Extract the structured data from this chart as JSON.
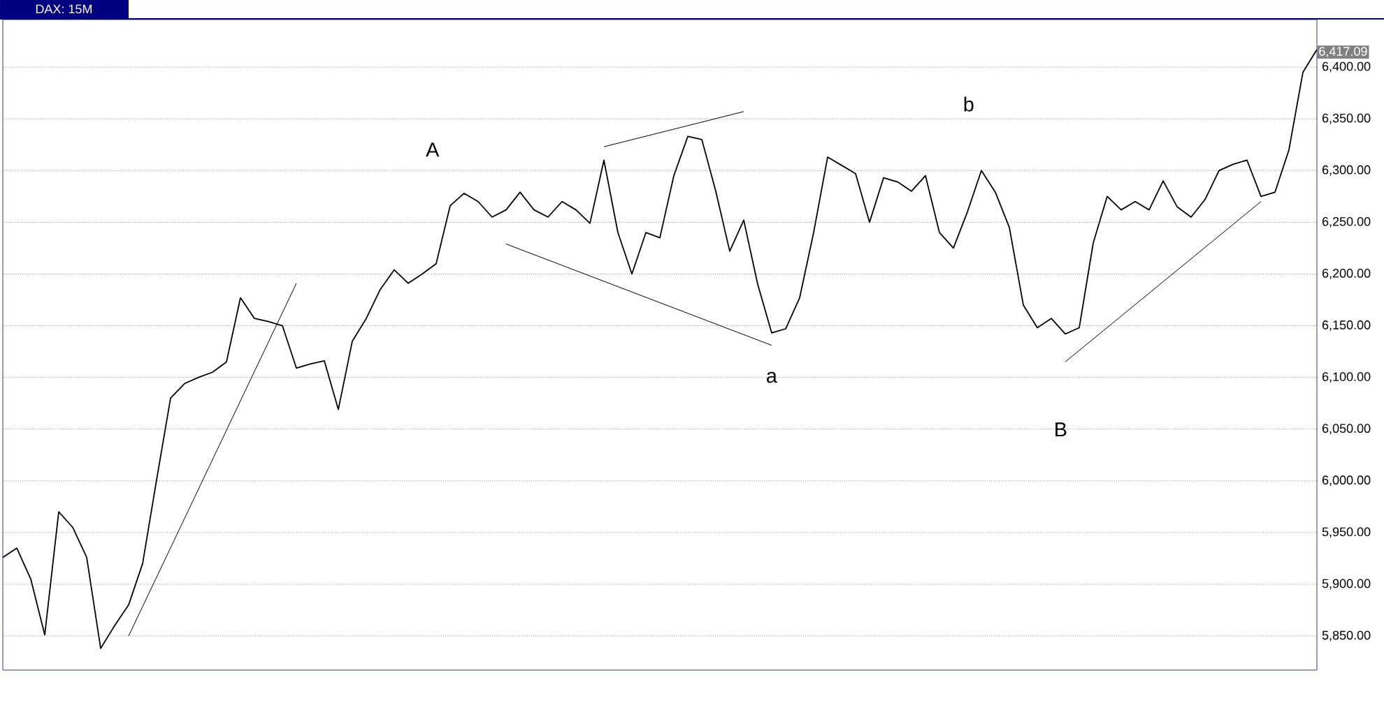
{
  "chart_data": {
    "type": "line",
    "title": "DAX: 15M",
    "categories": [
      null,
      null,
      null,
      null,
      null,
      null,
      null,
      null,
      null,
      null,
      null,
      null,
      null,
      null,
      null,
      null,
      null,
      null,
      null,
      null,
      null,
      null,
      null,
      null,
      null,
      null,
      null,
      null,
      null,
      null,
      null,
      null,
      null,
      null,
      null,
      null,
      null,
      null,
      null,
      null,
      null,
      null,
      null,
      null,
      null,
      null,
      null,
      null,
      null,
      null,
      null,
      null,
      null,
      null,
      null,
      null,
      null,
      null,
      null,
      null,
      null,
      null,
      null,
      null,
      null,
      null,
      null,
      null,
      null,
      null,
      null,
      null,
      null,
      null,
      null,
      null,
      null,
      null,
      null,
      null,
      null,
      null,
      null,
      null,
      null,
      null,
      null,
      null,
      null,
      null,
      null,
      null,
      null,
      null,
      null
    ],
    "ylim": [
      5817,
      6446
    ],
    "tick_labels": "y",
    "grid": "y",
    "yticks": [
      {
        "value": 5850,
        "label": "5,850.00"
      },
      {
        "value": 5900,
        "label": "5,900.00"
      },
      {
        "value": 5950,
        "label": "5,950.00"
      },
      {
        "value": 6000,
        "label": "6,000.00"
      },
      {
        "value": 6050,
        "label": "6,050.00"
      },
      {
        "value": 6100,
        "label": "6,100.00"
      },
      {
        "value": 6150,
        "label": "6,150.00"
      },
      {
        "value": 6200,
        "label": "6,200.00"
      },
      {
        "value": 6250,
        "label": "6,250.00"
      },
      {
        "value": 6300,
        "label": "6,300.00"
      },
      {
        "value": 6350,
        "label": "6,350.00"
      },
      {
        "value": 6400,
        "label": "6,400.00"
      }
    ],
    "series": [
      {
        "color": "#000000",
        "values": [
          5926,
          5935,
          5905,
          5851,
          5970,
          5955,
          5926,
          5838,
          5860,
          5880,
          5920,
          6001,
          6080,
          6094,
          6100,
          6105,
          6115,
          6177,
          6157,
          6154,
          6150,
          6109,
          6113,
          6116,
          6069,
          6135,
          6157,
          6185,
          6204,
          6191,
          6200,
          6210,
          6266,
          6278,
          6270,
          6255,
          6262,
          6279,
          6262,
          6255,
          6270,
          6262,
          6249,
          6310,
          6240,
          6200,
          6240,
          6235,
          6295,
          6333,
          6330,
          6280,
          6222,
          6252,
          6190,
          6143,
          6147,
          6177,
          6240,
          6313,
          6305,
          6297,
          6250,
          6293,
          6289,
          6280,
          6295,
          6240,
          6225,
          6260,
          6300,
          6279,
          6245,
          6170,
          6148,
          6157,
          6142,
          6148,
          6230,
          6275,
          6262,
          6270,
          6262,
          6290,
          6265,
          6255,
          6272,
          6300,
          6306,
          6310,
          6275,
          6279,
          6320,
          6395,
          6417
        ]
      },
      {
        "color": "#000000",
        "values": [
          null,
          null,
          null,
          null,
          null,
          null,
          null,
          null,
          null,
          5850,
          null,
          null,
          null,
          null,
          null,
          null,
          null,
          null,
          null,
          null,
          null,
          6191,
          null,
          null,
          null,
          null,
          null,
          null,
          null,
          null,
          null,
          null,
          null,
          null,
          null,
          null,
          null,
          null,
          null,
          null,
          null,
          null,
          null,
          null,
          null,
          null,
          null,
          null,
          null,
          null,
          null,
          null,
          null,
          null,
          null,
          null,
          null,
          null,
          null,
          null,
          null,
          null,
          null,
          null,
          null,
          null,
          null,
          null,
          null,
          null,
          null,
          null,
          null,
          null,
          null,
          null,
          null,
          null,
          null,
          null,
          null,
          null,
          null,
          null,
          null,
          null,
          null,
          null,
          null,
          null,
          null,
          null,
          null,
          null,
          null
        ]
      },
      {
        "color": "#000000",
        "values": [
          null,
          null,
          null,
          null,
          null,
          null,
          null,
          null,
          null,
          null,
          null,
          null,
          null,
          null,
          null,
          null,
          null,
          null,
          null,
          null,
          null,
          null,
          null,
          null,
          null,
          null,
          null,
          null,
          null,
          null,
          null,
          null,
          null,
          null,
          null,
          null,
          6229,
          null,
          null,
          null,
          null,
          null,
          null,
          null,
          null,
          null,
          null,
          null,
          null,
          null,
          null,
          null,
          null,
          null,
          null,
          6131,
          null,
          null,
          null,
          null,
          null,
          null,
          null,
          null,
          null,
          null,
          null,
          null,
          null,
          null,
          null,
          null,
          null,
          null,
          null,
          null,
          null,
          null,
          null,
          null,
          null,
          null,
          null,
          null,
          null,
          null,
          null,
          null,
          null,
          null,
          null,
          null,
          null,
          null,
          null
        ]
      },
      {
        "color": "#000000",
        "values": [
          null,
          null,
          null,
          null,
          null,
          null,
          null,
          null,
          null,
          null,
          null,
          null,
          null,
          null,
          null,
          null,
          null,
          null,
          null,
          null,
          null,
          null,
          null,
          null,
          null,
          null,
          null,
          null,
          null,
          null,
          null,
          null,
          null,
          null,
          null,
          null,
          null,
          null,
          null,
          null,
          null,
          null,
          null,
          6323,
          null,
          null,
          null,
          null,
          null,
          null,
          null,
          null,
          null,
          6357,
          null,
          null,
          null,
          null,
          null,
          null,
          null,
          null,
          null,
          null,
          null,
          null,
          null,
          null,
          null,
          null,
          null,
          null,
          null,
          null,
          null,
          null,
          null,
          null,
          null,
          null,
          null,
          null,
          null,
          null,
          null,
          null,
          null,
          null,
          null,
          null,
          null,
          null,
          null,
          null,
          null
        ]
      },
      {
        "color": "#000000",
        "values": [
          null,
          null,
          null,
          null,
          null,
          null,
          null,
          null,
          null,
          null,
          null,
          null,
          null,
          null,
          null,
          null,
          null,
          null,
          null,
          null,
          null,
          null,
          null,
          null,
          null,
          null,
          null,
          null,
          null,
          null,
          null,
          null,
          null,
          null,
          null,
          null,
          null,
          null,
          null,
          null,
          null,
          null,
          null,
          null,
          null,
          null,
          null,
          null,
          null,
          null,
          null,
          null,
          null,
          null,
          null,
          null,
          null,
          null,
          null,
          null,
          null,
          null,
          null,
          null,
          null,
          null,
          null,
          null,
          null,
          null,
          null,
          null,
          null,
          null,
          null,
          null,
          6115,
          null,
          null,
          null,
          null,
          null,
          null,
          null,
          null,
          null,
          null,
          null,
          null,
          null,
          6270,
          null,
          null,
          null,
          null
        ]
      }
    ],
    "annotations": [
      "A",
      "a",
      "b",
      "B",
      "6,417.09"
    ]
  }
}
